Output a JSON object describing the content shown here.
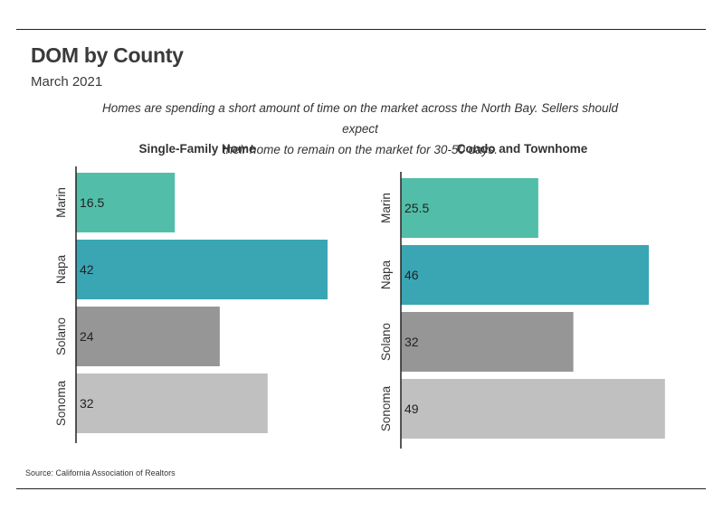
{
  "header": {
    "title": "DOM by County",
    "subtitle": "March 2021",
    "description_line1": "Homes are spending a short amount of time on the market across the North Bay. Sellers should expect",
    "description_line2": "their home to remain on the market for 30-50 days."
  },
  "footer": {
    "source": "Source:  California Association of Realtors"
  },
  "colors": {
    "Marin": "#52bea9",
    "Napa": "#3aa6b4",
    "Solano": "#969696",
    "Sonoma": "#c0c0c0"
  },
  "chart_data": [
    {
      "type": "bar",
      "orientation": "horizontal",
      "title": "Single-Family Home",
      "categories": [
        "Marin",
        "Napa",
        "Solano",
        "Sonoma"
      ],
      "values": [
        16.5,
        42,
        24,
        32
      ],
      "value_labels": [
        "16.5",
        "42",
        "24",
        "32"
      ],
      "xlim": [
        0,
        50
      ]
    },
    {
      "type": "bar",
      "orientation": "horizontal",
      "title": "Condo and Townhome",
      "categories": [
        "Marin",
        "Napa",
        "Solano",
        "Sonoma"
      ],
      "values": [
        25.5,
        46,
        32,
        49
      ],
      "value_labels": [
        "25.5",
        "46",
        "32",
        "49"
      ],
      "xlim": [
        0,
        50
      ]
    }
  ]
}
